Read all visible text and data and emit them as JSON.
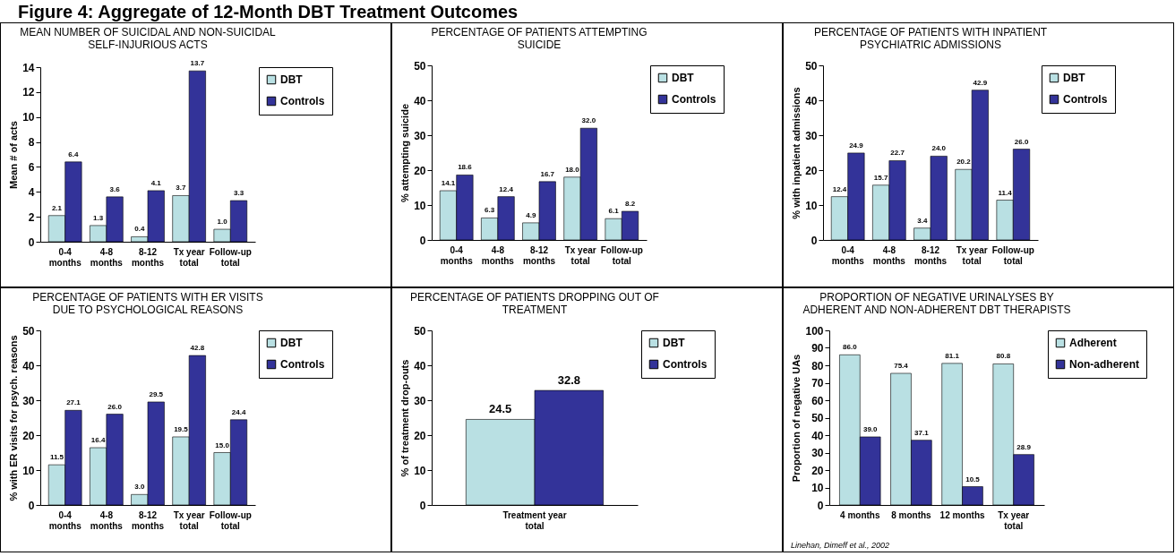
{
  "chart_data": [
    {
      "type": "bar",
      "title": "MEAN NUMBER OF SUICIDAL AND NON-SUICIDAL SELF-INJURIOUS ACTS",
      "annotations": [
        "Figure 4: Aggregate of 12-Month DBT Treatment Outcomes"
      ],
      "ylabel": "Mean # of acts",
      "categories": [
        "0-4 months",
        "4-8 months",
        "8-12 months",
        "Tx year total",
        "Follow-up total"
      ],
      "ylim": [
        0,
        14
      ],
      "yticks": [
        0,
        2,
        4,
        6,
        8,
        10,
        12,
        14
      ],
      "legend": "top right",
      "grid": false,
      "series": [
        {
          "name": "DBT",
          "color": "#b9e0e3",
          "values": [
            2.1,
            1.3,
            0.4,
            3.7,
            1.0
          ],
          "value_labels": [
            "2.1",
            "1.3",
            "0.4",
            "3.7",
            "1.0"
          ]
        },
        {
          "name": "Controls",
          "color": "#333399",
          "values": [
            6.4,
            3.6,
            4.1,
            13.7,
            3.3
          ],
          "value_labels": [
            "6.4",
            "3.6",
            "4.1",
            "13.7",
            "3.3"
          ]
        }
      ]
    },
    {
      "type": "bar",
      "title": "PERCENTAGE OF PATIENTS ATTEMPTING SUICIDE",
      "ylabel": "% attempting suicide",
      "categories": [
        "0-4 months",
        "4-8 months",
        "8-12 months",
        "Tx year total",
        "Follow-up total"
      ],
      "ylim": [
        0,
        50
      ],
      "yticks": [
        0,
        10,
        20,
        30,
        40,
        50
      ],
      "legend": "top right",
      "grid": false,
      "series": [
        {
          "name": "DBT",
          "color": "#b9e0e3",
          "values": [
            14.1,
            6.3,
            4.9,
            18.0,
            6.1
          ],
          "value_labels": [
            "14.1",
            "6.3",
            "4.9",
            "18.0",
            "6.1"
          ]
        },
        {
          "name": "Controls",
          "color": "#333399",
          "values": [
            18.6,
            12.4,
            16.7,
            32.0,
            8.2
          ],
          "value_labels": [
            "18.6",
            "12.4",
            "16.7",
            "32.0",
            "8.2"
          ]
        }
      ]
    },
    {
      "type": "bar",
      "title": "PERCENTAGE OF PATIENTS WITH INPATIENT PSYCHIATRIC ADMISSIONS",
      "ylabel": "% with inpatient admissions",
      "categories": [
        "0-4 months",
        "4-8 months",
        "8-12 months",
        "Tx year total",
        "Follow-up total"
      ],
      "ylim": [
        0,
        50
      ],
      "yticks": [
        0,
        10,
        20,
        30,
        40,
        50
      ],
      "legend": "top right",
      "grid": false,
      "series": [
        {
          "name": "DBT",
          "color": "#b9e0e3",
          "values": [
            12.4,
            15.7,
            3.4,
            20.2,
            11.4
          ],
          "value_labels": [
            "12.4",
            "15.7",
            "3.4",
            "20.2",
            "11.4"
          ]
        },
        {
          "name": "Controls",
          "color": "#333399",
          "values": [
            24.9,
            22.7,
            24.0,
            42.9,
            26.0
          ],
          "value_labels": [
            "24.9",
            "22.7",
            "24.0",
            "42.9",
            "26.0"
          ]
        }
      ]
    },
    {
      "type": "bar",
      "title": "PERCENTAGE OF PATIENTS WITH ER VISITS DUE TO PSYCHOLOGICAL REASONS",
      "ylabel": "% with ER visits for psych. reasons",
      "categories": [
        "0-4 months",
        "4-8 months",
        "8-12 months",
        "Tx year total",
        "Follow-up total"
      ],
      "ylim": [
        0,
        50
      ],
      "yticks": [
        0,
        10,
        20,
        30,
        40,
        50
      ],
      "legend": "top right",
      "grid": false,
      "series": [
        {
          "name": "DBT",
          "color": "#b9e0e3",
          "values": [
            11.5,
            16.4,
            3.0,
            19.5,
            15.0
          ],
          "value_labels": [
            "11.5",
            "16.4",
            "3.0",
            "19.5",
            "15.0"
          ]
        },
        {
          "name": "Controls",
          "color": "#333399",
          "values": [
            27.1,
            26.0,
            29.5,
            42.8,
            24.4
          ],
          "value_labels": [
            "27.1",
            "26.0",
            "29.5",
            "42.8",
            "24.4"
          ]
        }
      ]
    },
    {
      "type": "bar",
      "title": "PERCENTAGE OF PATIENTS DROPPING OUT OF TREATMENT",
      "ylabel": "% of treatment drop-outs",
      "categories": [
        "Treatment year total"
      ],
      "ylim": [
        0,
        50
      ],
      "yticks": [
        0,
        10,
        20,
        30,
        40,
        50
      ],
      "legend": "top right",
      "grid": false,
      "series": [
        {
          "name": "DBT",
          "color": "#b9e0e3",
          "values": [
            24.5
          ],
          "value_labels": [
            "24.5"
          ]
        },
        {
          "name": "Controls",
          "color": "#333399",
          "values": [
            32.8
          ],
          "value_labels": [
            "32.8"
          ]
        }
      ]
    },
    {
      "type": "bar",
      "title": "PROPORTION OF NEGATIVE URINALYSES BY ADHERENT AND NON-ADHERENT DBT THERAPISTS",
      "annotations": [
        "Linehan, Dimeff et al., 2002"
      ],
      "ylabel": "Proportion of negative UAs",
      "categories": [
        "4 months",
        "8 months",
        "12 months",
        "Tx year total"
      ],
      "ylim": [
        0,
        100
      ],
      "yticks": [
        0,
        10,
        20,
        30,
        40,
        50,
        60,
        70,
        80,
        90,
        100
      ],
      "legend": "top right",
      "grid": false,
      "series": [
        {
          "name": "Adherent",
          "color": "#b9e0e3",
          "values": [
            86.0,
            75.4,
            81.1,
            80.8
          ],
          "value_labels": [
            "86.0",
            "75.4",
            "81.1",
            "80.8"
          ]
        },
        {
          "name": "Non-adherent",
          "color": "#333399",
          "values": [
            39.0,
            37.1,
            10.5,
            28.9
          ],
          "value_labels": [
            "39.0",
            "37.1",
            "10.5",
            "28.9"
          ]
        }
      ]
    }
  ]
}
